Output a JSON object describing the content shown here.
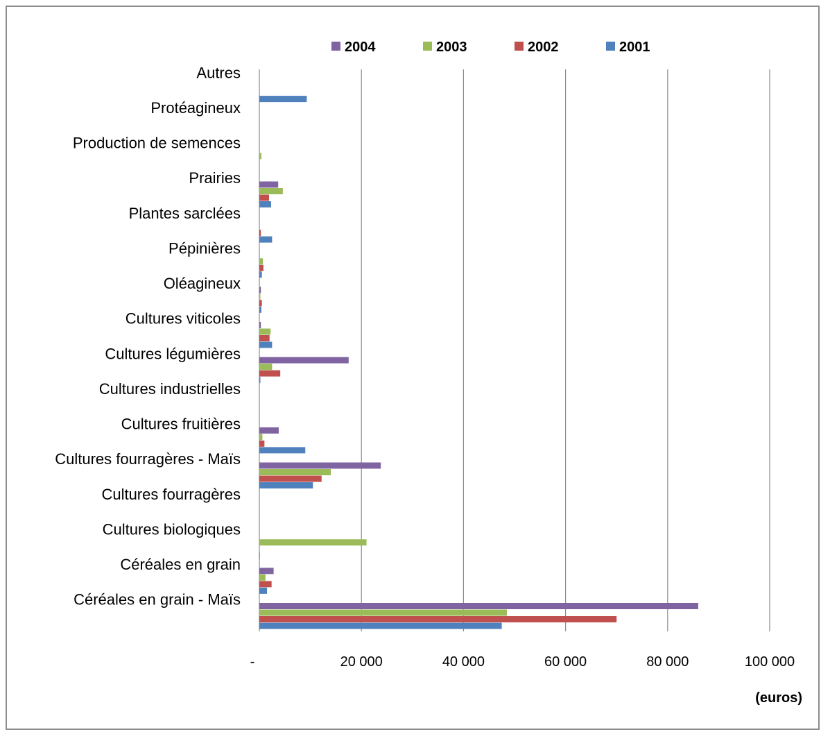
{
  "chart_data": {
    "type": "bar",
    "orientation": "horizontal",
    "categories": [
      "Céréales en grain - Maïs",
      "Céréales en grain",
      "Cultures biologiques",
      "Cultures fourragères",
      "Cultures fourragères - Maïs",
      "Cultures fruitières",
      "Cultures industrielles",
      "Cultures légumières",
      "Cultures viticoles",
      "Oléagineux",
      "Pépinières",
      "Plantes sarclées",
      "Prairies",
      "Production de semences",
      "Protéagineux",
      "Autres"
    ],
    "series": [
      {
        "name": "2001",
        "color": "#4f81bd",
        "values": [
          47500,
          1500,
          100,
          0,
          10500,
          9000,
          0,
          200,
          2500,
          400,
          500,
          2500,
          2300,
          0,
          0,
          9300
        ]
      },
      {
        "name": "2002",
        "color": "#c0504d",
        "values": [
          70000,
          2400,
          0,
          0,
          12200,
          1000,
          0,
          4100,
          2000,
          500,
          800,
          300,
          1900,
          0,
          0,
          0
        ]
      },
      {
        "name": "2003",
        "color": "#9bbb59",
        "values": [
          48500,
          1200,
          21000,
          0,
          14000,
          600,
          0,
          2500,
          2200,
          200,
          700,
          0,
          4600,
          400,
          0,
          0
        ]
      },
      {
        "name": "2004",
        "color": "#8064a2",
        "values": [
          86000,
          2800,
          0,
          0,
          23800,
          3800,
          0,
          17500,
          300,
          300,
          0,
          0,
          3700,
          0,
          0,
          0
        ]
      }
    ],
    "legend_order": [
      "2004",
      "2003",
      "2002",
      "2001"
    ],
    "legend_placement": "top",
    "x_ticks": [
      {
        "value": 0,
        "label": "-"
      },
      {
        "value": 20000,
        "label": "20 000"
      },
      {
        "value": 40000,
        "label": "40 000"
      },
      {
        "value": 60000,
        "label": "60 000"
      },
      {
        "value": 80000,
        "label": "80 000"
      },
      {
        "value": 100000,
        "label": "100 000"
      }
    ],
    "xlim": [
      0,
      100000
    ],
    "xlabel": "(euros)",
    "title": "",
    "grid": "vertical"
  }
}
